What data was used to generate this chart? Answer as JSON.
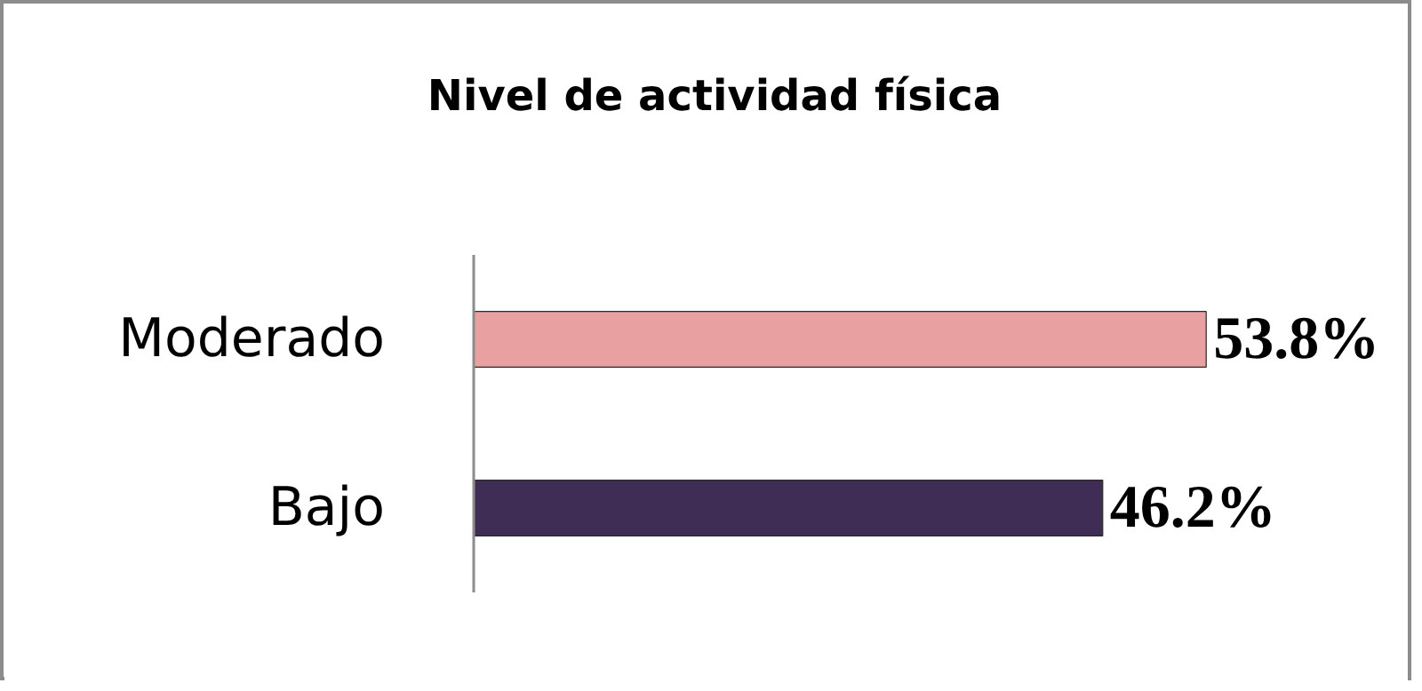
{
  "chart_data": {
    "type": "bar",
    "title": "Nivel de actividad física",
    "orientation": "horizontal",
    "categories": [
      "Moderado",
      "Bajo"
    ],
    "values": [
      53.8,
      46.2
    ],
    "colors": [
      "#e8a0a0",
      "#3f2d55"
    ],
    "value_labels": [
      "53.8%",
      "46.2%"
    ],
    "tick_labels": "y",
    "grid": false
  }
}
